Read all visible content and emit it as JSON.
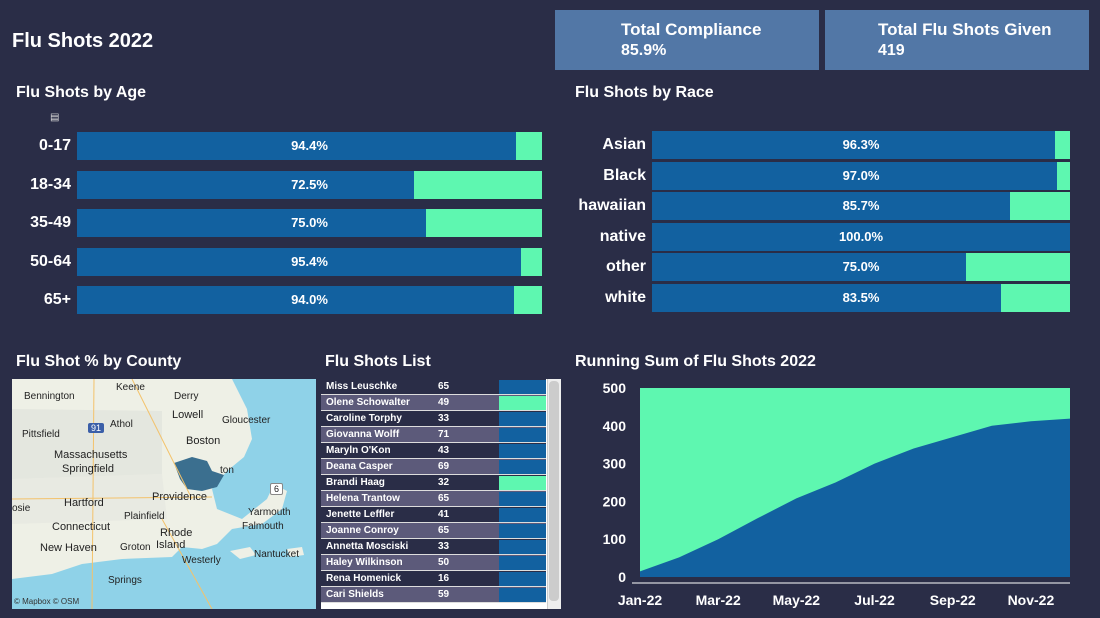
{
  "title": "Flu Shots 2022",
  "kpis": [
    {
      "label": "Total Compliance",
      "value": "85.9%"
    },
    {
      "label": "Total Flu Shots Given",
      "value": "419"
    }
  ],
  "age_section": {
    "title": "Flu Shots by Age",
    "rows": [
      {
        "label": "0-17",
        "pct": 94.4,
        "pct_label": "94.4%"
      },
      {
        "label": "18-34",
        "pct": 72.5,
        "pct_label": "72.5%"
      },
      {
        "label": "35-49",
        "pct": 75.0,
        "pct_label": "75.0%"
      },
      {
        "label": "50-64",
        "pct": 95.4,
        "pct_label": "95.4%"
      },
      {
        "label": "65+",
        "pct": 94.0,
        "pct_label": "94.0%"
      }
    ]
  },
  "race_section": {
    "title": "Flu Shots by Race",
    "rows": [
      {
        "label": "Asian",
        "pct": 96.3,
        "pct_label": "96.3%"
      },
      {
        "label": "Black",
        "pct": 97.0,
        "pct_label": "97.0%"
      },
      {
        "label": "hawaiian",
        "pct": 85.7,
        "pct_label": "85.7%"
      },
      {
        "label": "native",
        "pct": 100.0,
        "pct_label": "100.0%"
      },
      {
        "label": "other",
        "pct": 75.0,
        "pct_label": "75.0%"
      },
      {
        "label": "white",
        "pct": 83.5,
        "pct_label": "83.5%"
      }
    ]
  },
  "map_section": {
    "title": "Flu Shot % by County",
    "labels": [
      "Keene",
      "Derry",
      "Bennington",
      "Lowell",
      "Gloucester",
      "Pittsfield",
      "Athol",
      "Boston",
      "Massachusetts",
      "Springfield",
      "ton",
      "Hartford",
      "Providence",
      "Yarmouth",
      "osie",
      "Plainfield",
      "Connecticut",
      "Rhode",
      "Island",
      "Falmouth",
      "New Haven",
      "Groton",
      "Westerly",
      "Nantucket",
      "Springs"
    ],
    "attribution": "© Mapbox  © OSM",
    "highway_labels": [
      "91",
      "6"
    ]
  },
  "list_section": {
    "title": "Flu Shots List",
    "rows": [
      {
        "name": "Miss Leuschke",
        "count": "65",
        "status": "compliant"
      },
      {
        "name": "Olene Schowalter",
        "count": "49",
        "status": "not"
      },
      {
        "name": "Caroline Torphy",
        "count": "33",
        "status": "compliant"
      },
      {
        "name": "Giovanna Wolff",
        "count": "71",
        "status": "compliant"
      },
      {
        "name": "Maryln O'Kon",
        "count": "43",
        "status": "compliant"
      },
      {
        "name": "Deana Casper",
        "count": "69",
        "status": "compliant"
      },
      {
        "name": "Brandi Haag",
        "count": "32",
        "status": "not"
      },
      {
        "name": "Helena Trantow",
        "count": "65",
        "status": "compliant"
      },
      {
        "name": "Jenette Leffler",
        "count": "41",
        "status": "compliant"
      },
      {
        "name": "Joanne Conroy",
        "count": "65",
        "status": "compliant"
      },
      {
        "name": "Annetta Mosciski",
        "count": "33",
        "status": "compliant"
      },
      {
        "name": "Haley Wilkinson",
        "count": "50",
        "status": "compliant"
      },
      {
        "name": "Rena Homenick",
        "count": "16",
        "status": "compliant"
      },
      {
        "name": "Cari Shields",
        "count": "59",
        "status": "compliant"
      }
    ]
  },
  "chart_data": {
    "type": "area",
    "title": "Running Sum of Flu Shots 2022",
    "x_tick_labels": [
      "Jan-22",
      "Mar-22",
      "May-22",
      "Jul-22",
      "Sep-22",
      "Nov-22"
    ],
    "y_tick_labels": [
      "0",
      "100",
      "200",
      "300",
      "400",
      "500"
    ],
    "ylim": [
      0,
      500
    ],
    "x": [
      "2022-01",
      "2022-02",
      "2022-03",
      "2022-04",
      "2022-05",
      "2022-06",
      "2022-07",
      "2022-08",
      "2022-09",
      "2022-10",
      "2022-11",
      "2022-12"
    ],
    "series": [
      {
        "values": [
          15,
          52,
          100,
          155,
          208,
          250,
          300,
          340,
          370,
          400,
          412,
          419
        ]
      },
      {
        "values": [
          500,
          500,
          500,
          500,
          500,
          500,
          500,
          500,
          500,
          500,
          500,
          500
        ]
      }
    ],
    "colors": {
      "running_sum": "#1261a0",
      "remainder": "#5ef7b0"
    }
  },
  "colors": {
    "background": "#2a2d47",
    "kpi": "#5277a6",
    "bar_fill": "#1261a0",
    "bar_remainder": "#5ef7b0"
  }
}
